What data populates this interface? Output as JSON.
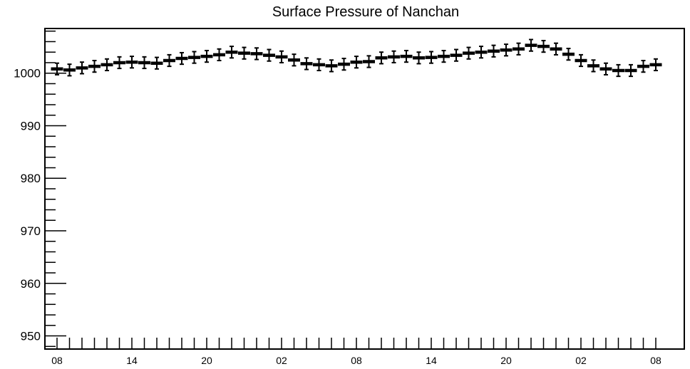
{
  "chart_data": {
    "type": "scatter",
    "title": "Surface Pressure of Nanchan",
    "xlabel": "",
    "ylabel": "",
    "ylim": [
      947.5,
      1008.5
    ],
    "grid": false,
    "legend": "none",
    "y_ticks": [
      950,
      960,
      970,
      980,
      990,
      1000
    ],
    "x_tick_labels": [
      "08",
      "14",
      "20",
      "02",
      "08",
      "14",
      "20",
      "02",
      "08"
    ],
    "x_tick_hours": [
      0,
      6,
      12,
      18,
      24,
      30,
      36,
      42,
      48
    ],
    "hours": [
      0,
      1,
      2,
      3,
      4,
      5,
      6,
      7,
      8,
      9,
      10,
      11,
      12,
      13,
      14,
      15,
      16,
      17,
      18,
      19,
      20,
      21,
      22,
      23,
      24,
      25,
      26,
      27,
      28,
      29,
      30,
      31,
      32,
      33,
      34,
      35,
      36,
      37,
      38,
      39,
      40,
      41,
      42,
      43,
      44,
      45,
      46,
      47,
      48
    ],
    "values": [
      1000.8,
      1000.6,
      1001.0,
      1001.3,
      1001.6,
      1002.0,
      1002.1,
      1002.0,
      1001.9,
      1002.4,
      1002.8,
      1003.0,
      1003.2,
      1003.5,
      1004.0,
      1003.8,
      1003.7,
      1003.4,
      1003.1,
      1002.5,
      1001.8,
      1001.6,
      1001.4,
      1001.7,
      1002.1,
      1002.2,
      1002.9,
      1003.1,
      1003.2,
      1002.9,
      1003.0,
      1003.2,
      1003.4,
      1003.8,
      1004.0,
      1004.2,
      1004.4,
      1004.6,
      1005.3,
      1005.1,
      1004.6,
      1003.6,
      1002.4,
      1001.4,
      1000.8,
      1000.5,
      1000.5,
      1001.3,
      1001.6
    ],
    "error": 1.1,
    "colors": {
      "marker": "#000000",
      "frame": "#000000",
      "background": "#ffffff"
    }
  }
}
